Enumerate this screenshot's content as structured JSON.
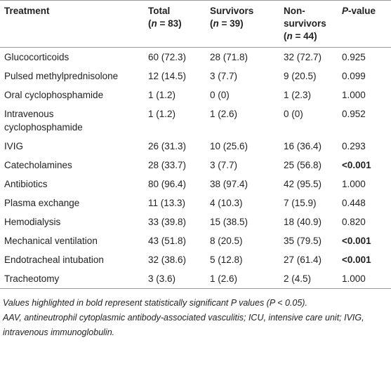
{
  "table": {
    "columns": [
      [
        "Treatment"
      ],
      [
        "Total",
        "(",
        "n",
        " = 83)"
      ],
      [
        "Survivors",
        "(",
        "n",
        " = 39)"
      ],
      [
        "Non-",
        "survivors",
        "(",
        "n",
        " = 44)"
      ],
      [
        "P",
        "-value"
      ]
    ],
    "rows": [
      [
        "Glucocorticoids",
        "60 (72.3)",
        "28 (71.8)",
        "32 (72.7)",
        "0.925"
      ],
      [
        "Pulsed methylprednisolone",
        "12 (14.5)",
        "3 (7.7)",
        "9 (20.5)",
        "0.099"
      ],
      [
        "Oral cyclophosphamide",
        "1 (1.2)",
        "0 (0)",
        "1 (2.3)",
        "1.000"
      ],
      [
        "Intravenous cyclophosphamide",
        "1 (1.2)",
        "1 (2.6)",
        "0 (0)",
        "0.952"
      ],
      [
        "IVIG",
        "26 (31.3)",
        "10 (25.6)",
        "16 (36.4)",
        "0.293"
      ],
      [
        "Catecholamines",
        "28 (33.7)",
        "3 (7.7)",
        "25 (56.8)",
        "<0.001"
      ],
      [
        "Antibiotics",
        "80 (96.4)",
        "38 (97.4)",
        "42 (95.5)",
        "1.000"
      ],
      [
        "Plasma exchange",
        "11 (13.3)",
        "4 (10.3)",
        "7 (15.9)",
        "0.448"
      ],
      [
        "Hemodialysis",
        "33 (39.8)",
        "15 (38.5)",
        "18 (40.9)",
        "0.820"
      ],
      [
        "Mechanical ventilation",
        "43 (51.8)",
        "8 (20.5)",
        "35 (79.5)",
        "<0.001"
      ],
      [
        "Endotracheal intubation",
        "32 (38.6)",
        "5 (12.8)",
        "27 (61.4)",
        "<0.001"
      ],
      [
        "Tracheotomy",
        "3 (3.6)",
        "1 (2.6)",
        "2 (4.5)",
        "1.000"
      ]
    ],
    "footnotes": [
      "Values highlighted in bold represent statistically significant P values (P < 0.05).",
      "AAV, antineutrophil cytoplasmic antibody-associated vasculitis; ICU, intensive care unit; IVIG, intravenous immunoglobulin."
    ]
  }
}
